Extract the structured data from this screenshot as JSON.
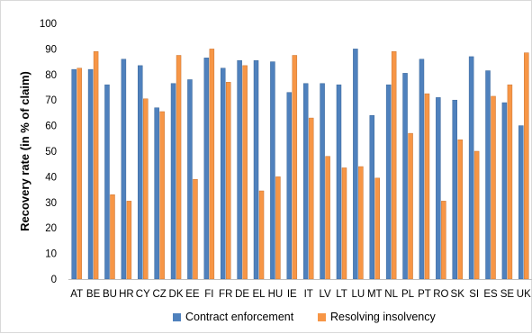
{
  "chart_data": {
    "type": "bar",
    "title": "",
    "xlabel": "",
    "ylabel": "Recovery rate (in % of claim)",
    "ylim": [
      0,
      100
    ],
    "yticks": [
      0,
      10,
      20,
      30,
      40,
      50,
      60,
      70,
      80,
      90,
      100
    ],
    "grid": false,
    "legend": "bottom",
    "categories": [
      "AT",
      "BE",
      "BU",
      "HR",
      "CY",
      "CZ",
      "DK",
      "EE",
      "FI",
      "FR",
      "DE",
      "EL",
      "HU",
      "IE",
      "IT",
      "LV",
      "LT",
      "LU",
      "MT",
      "NL",
      "PL",
      "PT",
      "RO",
      "SK",
      "SI",
      "ES",
      "SE",
      "UK"
    ],
    "series": [
      {
        "name": "Contract enforcement",
        "color": "#4f81bd",
        "stroke": "#3a6699",
        "values": [
          82,
          82,
          76,
          86,
          83.5,
          67,
          76.5,
          78,
          86.5,
          82.5,
          85.5,
          85.5,
          85,
          73,
          76.5,
          76.5,
          76,
          90,
          64,
          76,
          80.5,
          86,
          71,
          70,
          87,
          81.5,
          69,
          60
        ]
      },
      {
        "name": "Resolving insolvency",
        "color": "#f79646",
        "stroke": "#c97432",
        "values": [
          82.5,
          89,
          33,
          30.5,
          70.5,
          65.5,
          87.5,
          39,
          90,
          77,
          83.5,
          34.5,
          40,
          87.5,
          63,
          48,
          43.5,
          44,
          39.5,
          89,
          57,
          72.5,
          30.5,
          54.5,
          50,
          71.5,
          76,
          88.5
        ]
      }
    ]
  }
}
